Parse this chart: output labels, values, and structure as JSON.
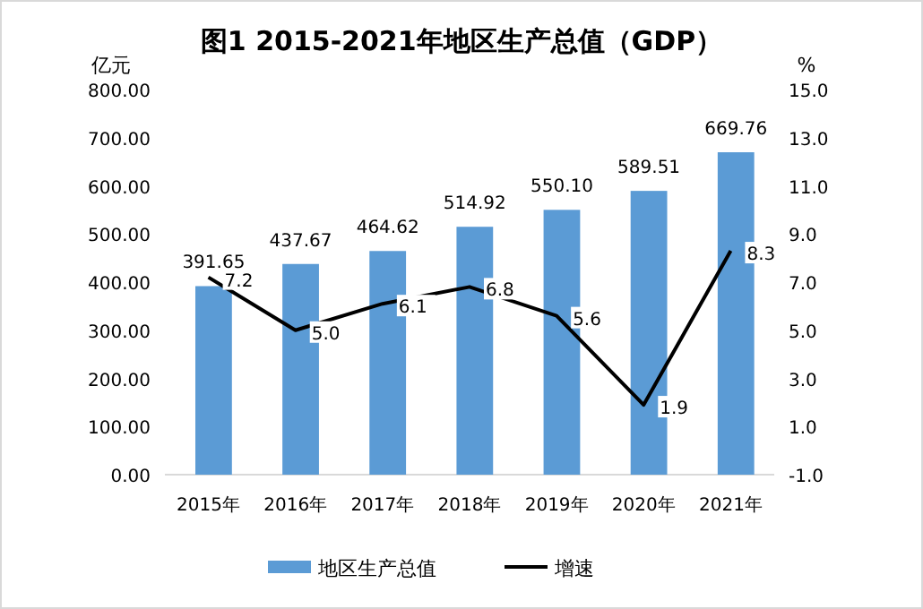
{
  "chart_data": {
    "type": "bar",
    "title": "图1 2015-2021年地区生产总值（GDP）",
    "ylabel": "亿元",
    "y2label": "%",
    "categories": [
      "2015年",
      "2016年",
      "2017年",
      "2018年",
      "2019年",
      "2020年",
      "2021年"
    ],
    "series": [
      {
        "name": "地区生产总值",
        "color": "#5b9bd5",
        "values": [
          391.65,
          437.67,
          464.62,
          514.92,
          550.1,
          589.51,
          669.76
        ],
        "value_labels": [
          "391.65",
          "437.67",
          "464.62",
          "514.92",
          "550.10",
          "589.51",
          "669.76"
        ]
      },
      {
        "name": "增速",
        "type": "line",
        "axis": "y2",
        "color": "#000000",
        "values": [
          7.2,
          5.0,
          6.1,
          6.8,
          5.6,
          1.9,
          8.3
        ],
        "value_labels": [
          "7.2",
          "5.0",
          "6.1",
          "6.8",
          "5.6",
          "1.9",
          "8.3"
        ]
      }
    ],
    "ylim": [
      0,
      800
    ],
    "yticks": [
      {
        "value": 0,
        "label": "0.00"
      },
      {
        "value": 100,
        "label": "100.00"
      },
      {
        "value": 200,
        "label": "200.00"
      },
      {
        "value": 300,
        "label": "300.00"
      },
      {
        "value": 400,
        "label": "400.00"
      },
      {
        "value": 500,
        "label": "500.00"
      },
      {
        "value": 600,
        "label": "600.00"
      },
      {
        "value": 700,
        "label": "700.00"
      },
      {
        "value": 800,
        "label": "800.00"
      }
    ],
    "y2lim": [
      -1,
      15
    ],
    "y2ticks": [
      {
        "value": -1,
        "label": "-1.0"
      },
      {
        "value": 1,
        "label": "1.0"
      },
      {
        "value": 3,
        "label": "3.0"
      },
      {
        "value": 5,
        "label": "5.0"
      },
      {
        "value": 7,
        "label": "7.0"
      },
      {
        "value": 9,
        "label": "9.0"
      },
      {
        "value": 11,
        "label": "11.0"
      },
      {
        "value": 13,
        "label": "13.0"
      },
      {
        "value": 15,
        "label": "15.0"
      }
    ],
    "grid": false,
    "legend": "bottom"
  }
}
